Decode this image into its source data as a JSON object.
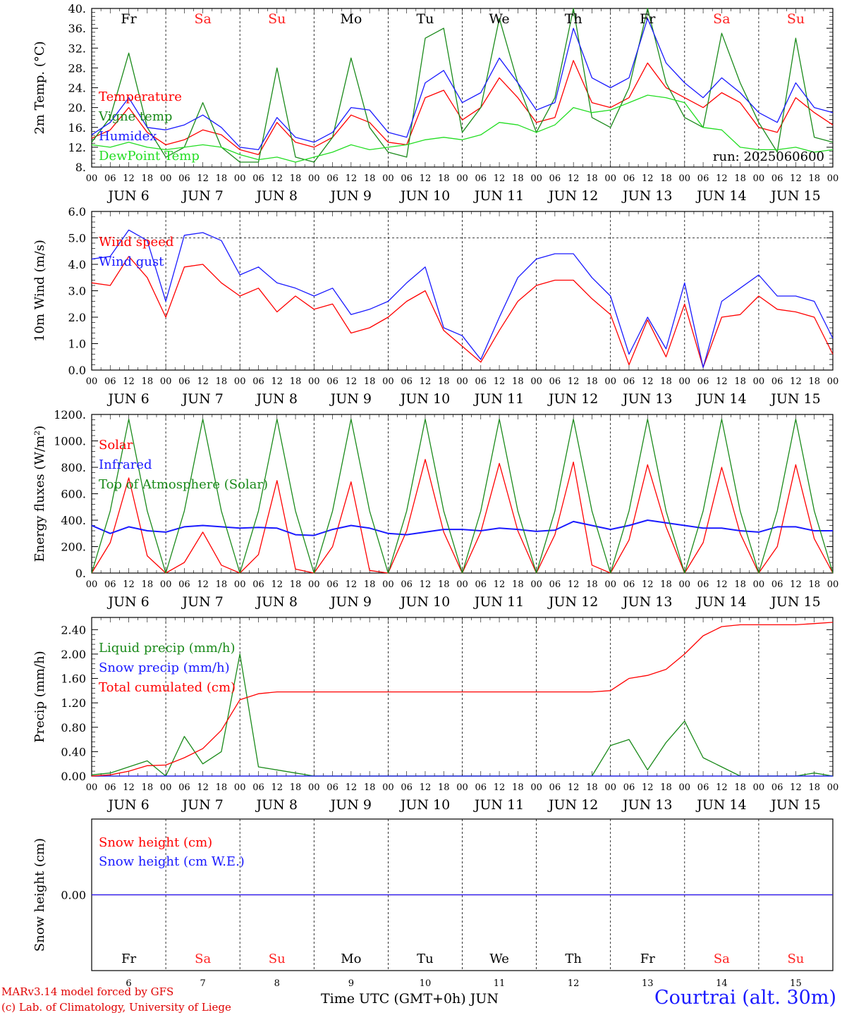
{
  "run_label": "run: 2025060600",
  "footer": {
    "model": "MARv3.14 model forced by GFS",
    "lab": "(c) Lab. of Climatology, University of Liege",
    "x_title": "Time UTC (GMT+0h) JUN",
    "station": "Courtrai (alt. 30m)"
  },
  "colors": {
    "red": "#ff0000",
    "green": "#1a8a1a",
    "blue": "#1a1aff",
    "light_green": "#22dd22",
    "weekend": "#ff2222"
  },
  "day_labels": [
    {
      "abbr": "Fr",
      "date": "JUN  6",
      "num": "6",
      "weekend": false
    },
    {
      "abbr": "Sa",
      "date": "JUN  7",
      "num": "7",
      "weekend": true
    },
    {
      "abbr": "Su",
      "date": "JUN  8",
      "num": "8",
      "weekend": true
    },
    {
      "abbr": "Mo",
      "date": "JUN  9",
      "num": "9",
      "weekend": false
    },
    {
      "abbr": "Tu",
      "date": "JUN 10",
      "num": "10",
      "weekend": false
    },
    {
      "abbr": "We",
      "date": "JUN 11",
      "num": "11",
      "weekend": false
    },
    {
      "abbr": "Th",
      "date": "JUN 12",
      "num": "12",
      "weekend": false
    },
    {
      "abbr": "Fr",
      "date": "JUN 13",
      "num": "13",
      "weekend": false
    },
    {
      "abbr": "Sa",
      "date": "JUN 14",
      "num": "14",
      "weekend": true
    },
    {
      "abbr": "Su",
      "date": "JUN 15",
      "num": "15",
      "weekend": true
    }
  ],
  "hour_labels": [
    "00",
    "06",
    "12",
    "18"
  ],
  "chart_data": [
    {
      "type": "line",
      "ylabel": "2m Temp. (°C)",
      "ylim": [
        8,
        40
      ],
      "yticks": [
        "8.",
        "12.",
        "16.",
        "20.",
        "24.",
        "28.",
        "32.",
        "36.",
        "40."
      ],
      "x_hours": [
        0,
        6,
        12,
        18,
        24,
        30,
        36,
        42,
        48,
        54,
        60,
        66,
        72,
        78,
        84,
        90,
        96,
        102,
        108,
        114,
        120,
        126,
        132,
        138,
        144,
        150,
        156,
        162,
        168,
        174,
        180,
        186,
        192,
        198,
        204,
        210,
        216,
        222,
        228,
        234,
        240
      ],
      "series": [
        {
          "name": "Temperature",
          "color": "#ff0000",
          "values": [
            13.8,
            15.5,
            20,
            15,
            12.5,
            13.5,
            15.5,
            14.5,
            11.5,
            10.5,
            17,
            13,
            12,
            14,
            18.5,
            17,
            13,
            12.5,
            22,
            23.5,
            17.5,
            20,
            26,
            22,
            17,
            18,
            29.5,
            21,
            20,
            22,
            29,
            24,
            22,
            20,
            23,
            21,
            16,
            15,
            22,
            19,
            16.5
          ]
        },
        {
          "name": "Vigne temp",
          "color": "#1a8a1a",
          "values": [
            13,
            18,
            31,
            16,
            10,
            12,
            21,
            12,
            9,
            9,
            28,
            10,
            9,
            14,
            30,
            16,
            11,
            10,
            34,
            36,
            15,
            20,
            38,
            25,
            15,
            22,
            40,
            18,
            16,
            24,
            40,
            25,
            18,
            16,
            35,
            25,
            17,
            11,
            34,
            14,
            13
          ]
        },
        {
          "name": "Humidex",
          "color": "#1a1aff",
          "values": [
            14.5,
            17,
            22,
            16,
            15.5,
            16.5,
            18.5,
            16,
            12,
            11.5,
            18,
            14,
            13,
            15,
            20,
            19.5,
            15,
            14,
            25,
            27.5,
            21,
            23,
            30,
            25,
            19.5,
            21,
            36,
            26,
            24,
            26,
            38,
            29,
            25,
            22,
            26,
            23,
            19,
            17,
            25,
            20,
            19
          ]
        },
        {
          "name": "DewPoint Temp",
          "color": "#22dd22",
          "values": [
            12.5,
            12,
            13,
            12,
            11.5,
            12,
            12.5,
            12,
            10.5,
            9.5,
            10,
            9,
            10,
            11,
            12.5,
            11.5,
            12,
            12.5,
            13.5,
            14,
            13.5,
            14.5,
            17,
            16.5,
            15,
            16.5,
            20,
            19,
            19.5,
            21,
            22.5,
            22,
            21,
            16,
            15.5,
            12,
            11.5,
            11.5,
            12,
            11,
            11.5
          ]
        }
      ]
    },
    {
      "type": "line",
      "ylabel": "10m Wind (m/s)",
      "ylim": [
        0,
        6
      ],
      "yticks": [
        "0.0",
        "1.0",
        "2.0",
        "3.0",
        "4.0",
        "5.0",
        "6.0"
      ],
      "reference_line": 5.0,
      "x_hours": [
        0,
        6,
        12,
        18,
        24,
        30,
        36,
        42,
        48,
        54,
        60,
        66,
        72,
        78,
        84,
        90,
        96,
        102,
        108,
        114,
        120,
        126,
        132,
        138,
        144,
        150,
        156,
        162,
        168,
        174,
        180,
        186,
        192,
        198,
        204,
        210,
        216,
        222,
        228,
        234,
        240
      ],
      "series": [
        {
          "name": "Wind speed",
          "color": "#ff0000",
          "values": [
            3.3,
            3.2,
            4.3,
            3.5,
            2.0,
            3.9,
            4.0,
            3.3,
            2.8,
            3.1,
            2.2,
            2.8,
            2.3,
            2.5,
            1.4,
            1.6,
            2.0,
            2.6,
            3.0,
            1.5,
            0.9,
            0.3,
            1.5,
            2.6,
            3.2,
            3.4,
            3.4,
            2.7,
            2.1,
            0.2,
            1.9,
            0.5,
            2.5,
            0.1,
            2.0,
            2.1,
            2.8,
            2.3,
            2.2,
            2.0,
            0.6
          ]
        },
        {
          "name": "Wind gust",
          "color": "#1a1aff",
          "values": [
            4.2,
            4.3,
            5.3,
            4.9,
            2.6,
            5.1,
            5.2,
            4.9,
            3.6,
            3.9,
            3.3,
            3.1,
            2.8,
            3.1,
            2.1,
            2.3,
            2.6,
            3.3,
            3.9,
            1.6,
            1.3,
            0.4,
            2.0,
            3.5,
            4.2,
            4.4,
            4.4,
            3.5,
            2.8,
            0.6,
            2.0,
            0.8,
            3.3,
            0.1,
            2.6,
            3.1,
            3.6,
            2.8,
            2.8,
            2.6,
            1.2
          ]
        }
      ]
    },
    {
      "type": "line",
      "ylabel": "Energy fluxes (W/m²)",
      "ylim": [
        0,
        1200
      ],
      "yticks": [
        "0.",
        "200.",
        "400.",
        "600.",
        "800.",
        "1000.",
        "1200."
      ],
      "x_hours": [
        0,
        6,
        12,
        18,
        24,
        30,
        36,
        42,
        48,
        54,
        60,
        66,
        72,
        78,
        84,
        90,
        96,
        102,
        108,
        114,
        120,
        126,
        132,
        138,
        144,
        150,
        156,
        162,
        168,
        174,
        180,
        186,
        192,
        198,
        204,
        210,
        216,
        222,
        228,
        234,
        240
      ],
      "series": [
        {
          "name": "Solar",
          "color": "#ff0000",
          "values": [
            0,
            230,
            720,
            130,
            0,
            80,
            310,
            60,
            0,
            140,
            700,
            30,
            0,
            200,
            690,
            20,
            0,
            320,
            860,
            310,
            0,
            310,
            830,
            320,
            0,
            290,
            840,
            60,
            0,
            250,
            820,
            350,
            0,
            230,
            800,
            300,
            0,
            200,
            820,
            260,
            0
          ]
        },
        {
          "name": "Infrared",
          "color": "#1a1aff",
          "values": [
            360,
            300,
            350,
            320,
            310,
            350,
            360,
            350,
            340,
            345,
            340,
            290,
            285,
            330,
            360,
            340,
            300,
            290,
            310,
            330,
            330,
            320,
            340,
            330,
            315,
            325,
            390,
            360,
            330,
            360,
            400,
            380,
            360,
            340,
            340,
            320,
            310,
            350,
            350,
            320,
            320
          ]
        },
        {
          "name": "Top of Atmosphere (Solar)",
          "color": "#1a8a1a",
          "values": [
            0,
            470,
            1165,
            470,
            0,
            470,
            1165,
            470,
            0,
            470,
            1165,
            470,
            0,
            470,
            1165,
            470,
            0,
            470,
            1165,
            470,
            0,
            470,
            1165,
            470,
            0,
            470,
            1165,
            470,
            0,
            470,
            1165,
            470,
            0,
            470,
            1165,
            470,
            0,
            470,
            1165,
            470,
            0
          ]
        }
      ]
    },
    {
      "type": "line",
      "ylabel": "Precip (mm/h)",
      "ylim": [
        0,
        2.6
      ],
      "yticks": [
        "0.00",
        "0.40",
        "0.80",
        "1.20",
        "1.60",
        "2.00",
        "2.40"
      ],
      "x_hours": [
        0,
        6,
        12,
        18,
        24,
        30,
        36,
        42,
        48,
        54,
        60,
        66,
        72,
        78,
        84,
        90,
        96,
        102,
        108,
        114,
        120,
        126,
        132,
        138,
        144,
        150,
        156,
        162,
        168,
        174,
        180,
        186,
        192,
        198,
        204,
        210,
        216,
        222,
        228,
        234,
        240
      ],
      "series": [
        {
          "name": "Liquid precip (mm/h)",
          "color": "#1a8a1a",
          "values": [
            0.02,
            0.05,
            0.15,
            0.25,
            0,
            0.65,
            0.2,
            0.4,
            2.0,
            0.15,
            0.1,
            0.05,
            0,
            0,
            0,
            0,
            0,
            0,
            0,
            0,
            0,
            0,
            0,
            0,
            0,
            0,
            0,
            0,
            0.5,
            0.6,
            0.1,
            0.55,
            0.9,
            0.3,
            0.15,
            0,
            0,
            0,
            0,
            0.05,
            0
          ]
        },
        {
          "name": "Snow precip (mm/h)",
          "color": "#1a1aff",
          "values": [
            0,
            0,
            0,
            0,
            0,
            0,
            0,
            0,
            0,
            0,
            0,
            0,
            0,
            0,
            0,
            0,
            0,
            0,
            0,
            0,
            0,
            0,
            0,
            0,
            0,
            0,
            0,
            0,
            0,
            0,
            0,
            0,
            0,
            0,
            0,
            0,
            0,
            0,
            0,
            0,
            0
          ]
        },
        {
          "name": "Total cumulated (cm)",
          "color": "#ff0000",
          "values": [
            0,
            0.02,
            0.08,
            0.17,
            0.18,
            0.3,
            0.45,
            0.75,
            1.25,
            1.35,
            1.38,
            1.38,
            1.38,
            1.38,
            1.38,
            1.38,
            1.38,
            1.38,
            1.38,
            1.38,
            1.38,
            1.38,
            1.38,
            1.38,
            1.38,
            1.38,
            1.38,
            1.38,
            1.4,
            1.6,
            1.65,
            1.75,
            2.0,
            2.3,
            2.45,
            2.48,
            2.48,
            2.48,
            2.48,
            2.5,
            2.52
          ]
        }
      ]
    },
    {
      "type": "line",
      "ylabel": "Snow height (cm)",
      "ytick": "0.00",
      "series": [
        {
          "name": "Snow height (cm)",
          "color": "#ff0000",
          "values": [
            0,
            0
          ]
        },
        {
          "name": "Snow height (cm W.E.)",
          "color": "#1a1aff",
          "values": [
            0,
            0
          ]
        }
      ]
    }
  ]
}
